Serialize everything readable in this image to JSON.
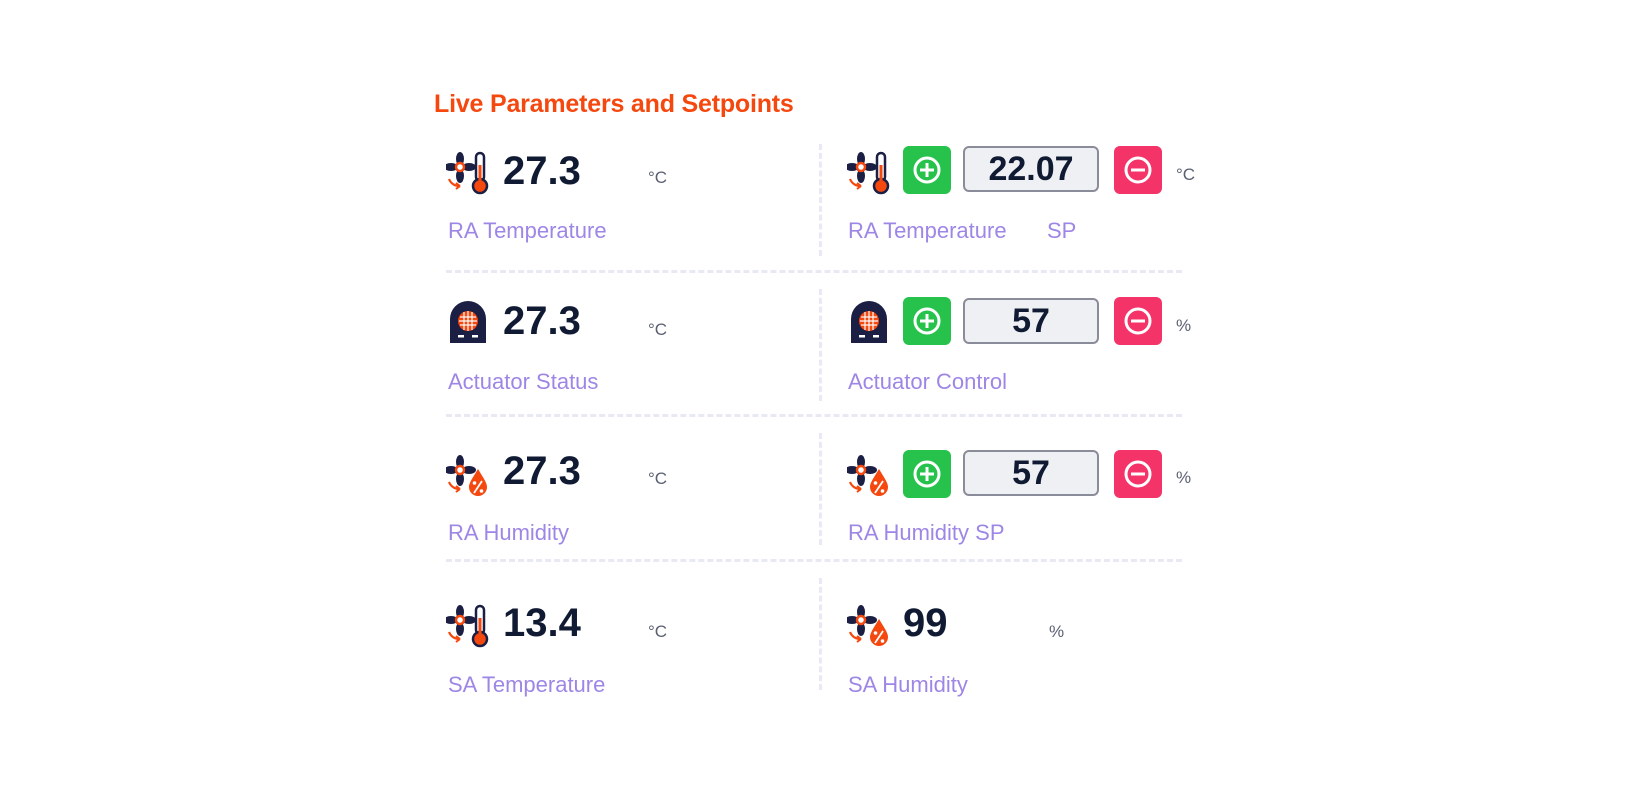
{
  "title": "Live Parameters and Setpoints",
  "colors": {
    "title": "#f5480f",
    "label": "#9e86e6",
    "value": "#101b33",
    "plus_button": "#27c24c",
    "minus_button": "#f43468",
    "icon_primary": "#1b1f44",
    "icon_accent": "#f5480f"
  },
  "icons": {
    "fan_thermometer": "fan-thermometer-icon",
    "actuator": "actuator-heater-icon",
    "fan_humidity": "fan-humidity-icon",
    "plus": "plus-circle-icon",
    "minus": "minus-circle-icon"
  },
  "live": [
    {
      "value": "27.3",
      "unit": "°C",
      "label": "RA Temperature"
    },
    {
      "value": "27.3",
      "unit": "°C",
      "label": "Actuator Status"
    },
    {
      "value": "27.3",
      "unit": "°C",
      "label": "RA Humidity"
    },
    {
      "value": "13.4",
      "unit": "°C",
      "label": "SA Temperature"
    }
  ],
  "setpoints": [
    {
      "value": "22.07",
      "unit": "°C",
      "label": "RA Temperature",
      "label_suffix": "SP"
    },
    {
      "value": "57",
      "unit": "%",
      "label": "Actuator Control"
    },
    {
      "value": "57",
      "unit": "%",
      "label": "RA Humidity SP"
    }
  ],
  "sa_humidity": {
    "value": "99",
    "unit": "%",
    "label": "SA Humidity"
  }
}
